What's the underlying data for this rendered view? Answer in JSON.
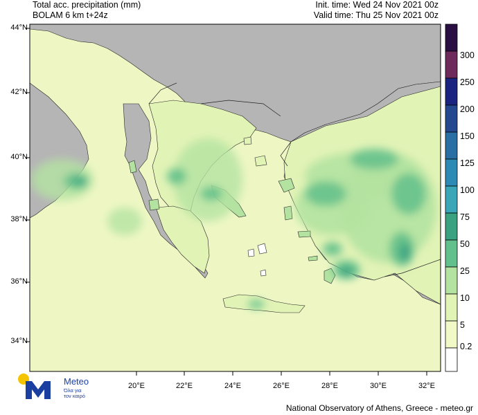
{
  "header": {
    "title_line1": "Total acc. precipitation (mm)",
    "title_line2": "BOLAM 6 km t+24z",
    "init_time": "Init. time: Wed 24 Nov 2021 00z",
    "valid_time": "Valid time: Thu 25 Nov 2021 00z"
  },
  "map": {
    "lat_labels": [
      "44°N",
      "42°N",
      "40°N",
      "38°N",
      "36°N",
      "34°N"
    ],
    "lon_labels": [
      "20°E",
      "22°E",
      "24°E",
      "26°E",
      "28°E",
      "30°E",
      "32°E"
    ],
    "colors": {
      "land_gray": "#b5b5b5",
      "precip_very_light": "#f1f9c6",
      "precip_light": "#e2f3b6",
      "precip_medium": "#b4e3a1",
      "precip_heavy": "#61c08b",
      "precip_very_heavy": "#3aa181"
    }
  },
  "colorbar": {
    "labels": [
      "300",
      "250",
      "200",
      "150",
      "125",
      "100",
      "75",
      "50",
      "25",
      "10",
      "5",
      "0.2"
    ],
    "colors": [
      "#2a0f44",
      "#6e2a5a",
      "#1a237f",
      "#24488f",
      "#2a6fa4",
      "#2c8ab5",
      "#3aa6b8",
      "#3aa181",
      "#61c08b",
      "#b4e3a1",
      "#e2f3b6",
      "#f1f9c6",
      "#ffffff"
    ]
  },
  "logo": {
    "name": "Meteo",
    "tagline_1": "Όλα για",
    "tagline_2": "τον καιρό"
  },
  "footer": {
    "credit": "National Observatory of Athens, Greece - meteo.gr"
  }
}
